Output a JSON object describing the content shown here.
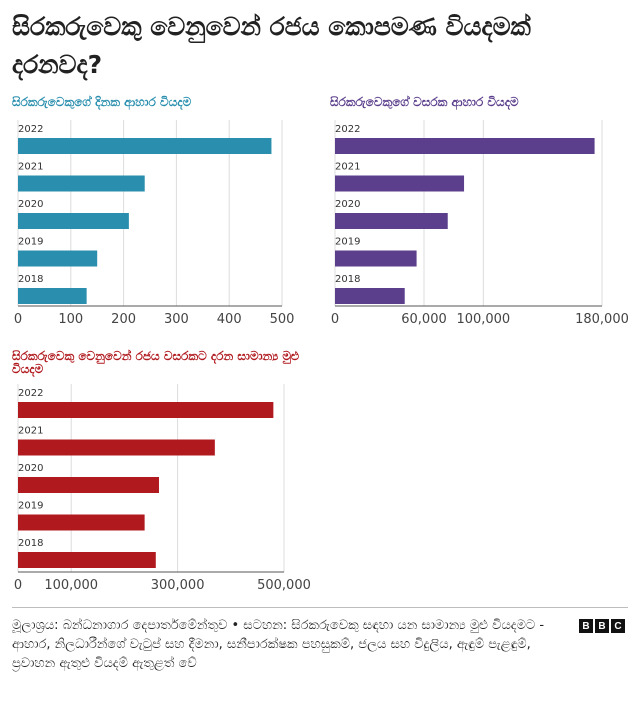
{
  "title": "සිරකරුවෙකු වෙනුවෙන් රජය කොපමණ වියදමක් දරනවද?",
  "chart_data": [
    {
      "type": "bar",
      "title": "සිරකරුවෙකුගේ දිනක ආහාර වියදම",
      "color": "#2a8fae",
      "categories": [
        "2022",
        "2021",
        "2020",
        "2019",
        "2018"
      ],
      "values": [
        480,
        240,
        210,
        150,
        130
      ],
      "xlim": [
        0,
        500
      ],
      "ticks": [
        "0",
        "100",
        "200",
        "300",
        "400",
        "500"
      ],
      "tick_values": [
        0,
        100,
        200,
        300,
        400,
        500
      ],
      "grid": true
    },
    {
      "type": "bar",
      "title": "සිරකරුවෙකුගේ වසරක ආහාර වියදම",
      "color": "#5b3e8c",
      "categories": [
        "2022",
        "2021",
        "2020",
        "2019",
        "2018"
      ],
      "values": [
        175000,
        87000,
        76000,
        55000,
        47000
      ],
      "xlim": [
        0,
        180000
      ],
      "ticks": [
        "0",
        "60,000",
        "100,000",
        "180,000"
      ],
      "tick_values": [
        0,
        60000,
        100000,
        180000
      ],
      "grid": true
    },
    {
      "type": "bar",
      "title": "සිරකරුවෙකු වෙනුවෙන් රජය වසරකට දරන සාමාන්‍ය මුළු වියදම",
      "color": "#b0191e",
      "categories": [
        "2022",
        "2021",
        "2020",
        "2019",
        "2018"
      ],
      "values": [
        480000,
        370000,
        265000,
        238000,
        259000
      ],
      "xlim": [
        0,
        500000
      ],
      "ticks": [
        "0",
        "100,000",
        "300,000",
        "500,000"
      ],
      "tick_values": [
        0,
        100000,
        300000,
        500000
      ],
      "grid": true
    }
  ],
  "footer": {
    "source": "මූලාශ්‍රය: බන්ධනාගාර දෙපාර්තමේන්තුව • සටහන: සිරකරුවෙකු සඳහා යන සාමාන්‍ය මුළු වියදමට - ආහාර, නිලධාරීන්ගේ වැටුප් සහ දීමනා, සනීපාරක්ෂක පහසුකම්, ජලය සහ විදුලිය, ඇඳුම් පැළඳුම්, ප්‍රවාහන ඇතුළු වියදම් ඇතුළත් වේ",
    "logo": [
      "B",
      "B",
      "C"
    ]
  }
}
